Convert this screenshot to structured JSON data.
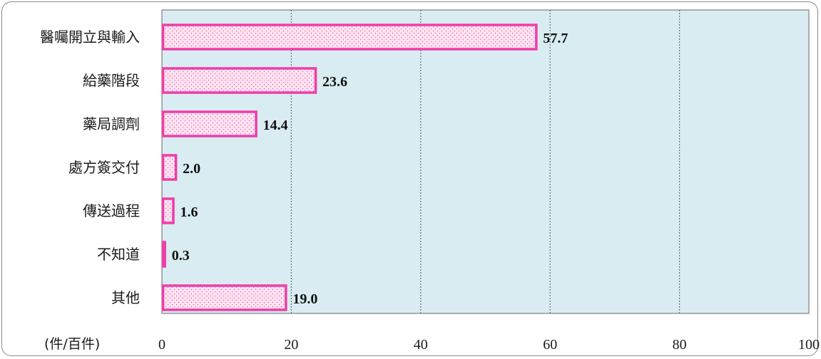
{
  "chart_data": {
    "type": "bar",
    "orientation": "horizontal",
    "categories": [
      "醫囑開立與輸入",
      "給藥階段",
      "藥局調劑",
      "處方簽交付",
      "傳送過程",
      "不知道",
      "其他"
    ],
    "values": [
      57.7,
      23.6,
      14.4,
      2.0,
      1.6,
      0.3,
      19.0
    ],
    "value_labels": [
      "57.7",
      "23.6",
      "14.4",
      "2.0",
      "1.6",
      "0.3",
      "19.0"
    ],
    "xlim": [
      0,
      100
    ],
    "x_ticks": [
      0,
      20,
      40,
      60,
      80,
      100
    ],
    "x_tick_labels": [
      "0",
      "20",
      "40",
      "60",
      "80",
      "100"
    ],
    "unit_label": "(件/百件)",
    "grid": "vertical dotted",
    "legend": "none",
    "colors": {
      "plot_background": "#d9ecf2",
      "bar_fill": "#fde4f1",
      "bar_dots": "#f15fb4",
      "bar_border": "#ee3ea8",
      "gridline": "#6f6f6f",
      "frame": "#8a8a8a"
    }
  }
}
